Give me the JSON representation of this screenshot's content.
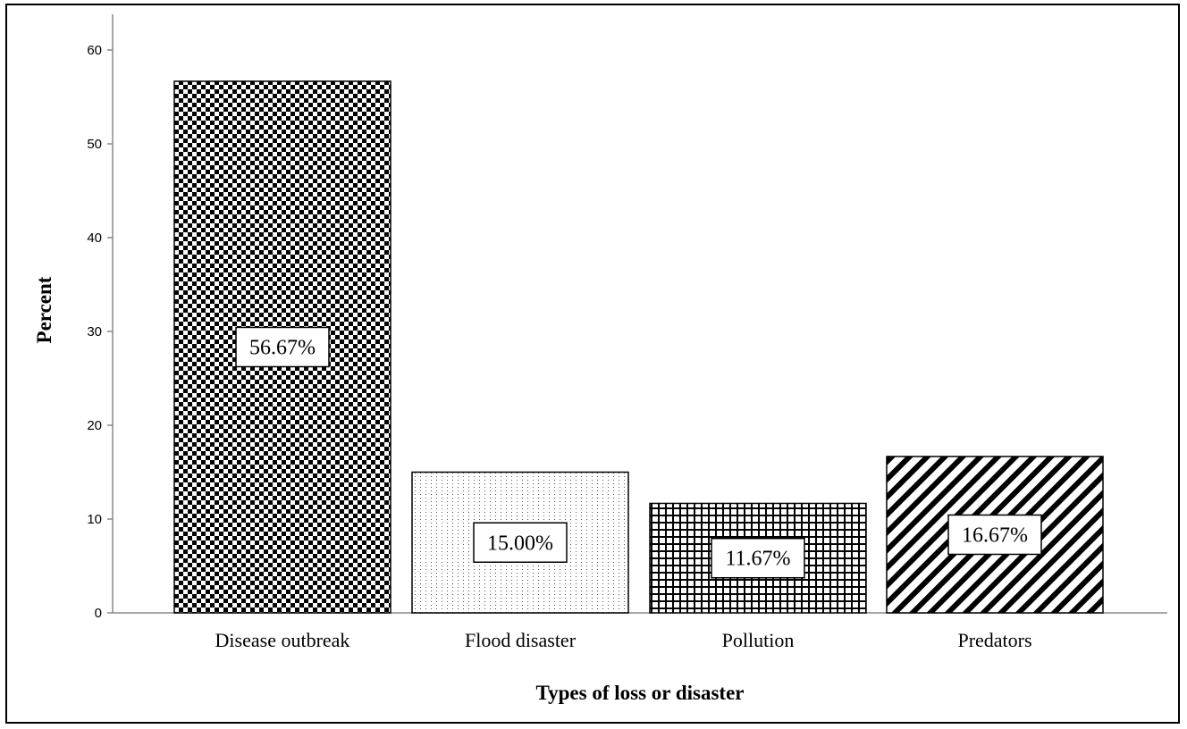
{
  "chart_data": {
    "type": "bar",
    "title": "",
    "xlabel": "Types of loss or disaster",
    "ylabel": "Percent",
    "categories": [
      "Disease outbreak",
      "Flood disaster",
      "Pollution",
      "Predators"
    ],
    "values": [
      56.67,
      15.0,
      11.67,
      16.67
    ],
    "data_labels": [
      "56.67%",
      "15.00%",
      "11.67%",
      "16.67%"
    ],
    "patterns": [
      "checkerboard",
      "dots",
      "grid",
      "diagonal-stripes"
    ],
    "ylim": [
      0,
      60
    ],
    "yticks": [
      0,
      10,
      20,
      30,
      40,
      50,
      60
    ],
    "grid": false,
    "legend": "none",
    "bar_color": "#000000",
    "background_color": "#ffffff"
  }
}
